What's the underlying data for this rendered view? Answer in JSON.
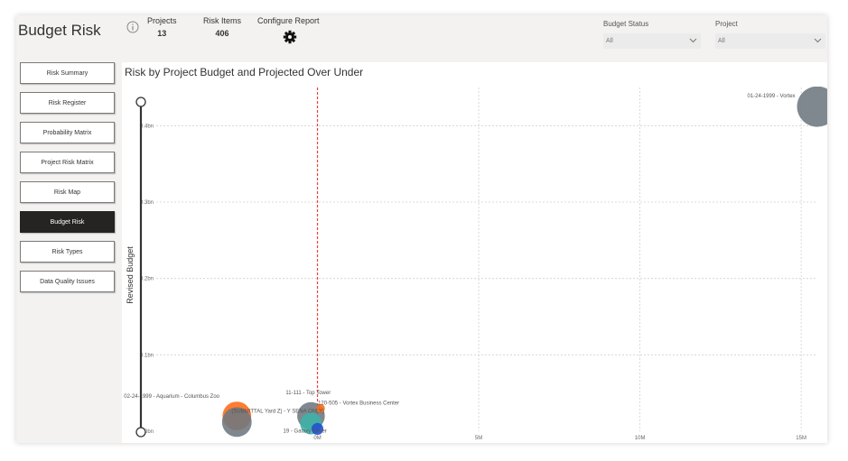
{
  "header": {
    "app_title": "Budget Risk",
    "kpis": [
      {
        "label": "Projects",
        "value": "13"
      },
      {
        "label": "Risk Items",
        "value": "406"
      }
    ],
    "configure_label": "Configure Report",
    "filters": [
      {
        "label": "Budget Status",
        "value": "All"
      },
      {
        "label": "Project",
        "value": "All"
      }
    ]
  },
  "sidebar": {
    "items": [
      {
        "label": "Risk Summary",
        "active": false
      },
      {
        "label": "Risk Register",
        "active": false
      },
      {
        "label": "Probability Matrix",
        "active": false
      },
      {
        "label": "Project Risk Matrix",
        "active": false
      },
      {
        "label": "Risk Map",
        "active": false
      },
      {
        "label": "Budget Risk",
        "active": true
      },
      {
        "label": "Risk Types",
        "active": false
      },
      {
        "label": "Data Quality Issues",
        "active": false
      }
    ]
  },
  "colors": {
    "accent_dark": "#252423",
    "bubble_gray": "#6e7780",
    "bubble_orange": "#ff6a13",
    "bubble_teal": "#3bb3a8",
    "bubble_blue": "#1f4fd1",
    "reference_line": "#e8443a"
  },
  "chart_data": {
    "type": "scatter",
    "title": "Risk by Project Budget and Projected Over Under",
    "xlabel": "",
    "ylabel": "Revised Budget",
    "x_ticks": [
      "0M",
      "5M",
      "10M",
      "15M"
    ],
    "y_ticks": [
      "0.0bn",
      "0.1bn",
      "0.2bn",
      "0.3bn",
      "0.4bn"
    ],
    "xlim": [
      -5000000,
      15500000
    ],
    "ylim": [
      0,
      450000000
    ],
    "reference_x": 0,
    "grid": true,
    "points": [
      {
        "label": "01-24-1999 - Vortex",
        "x": 15500000,
        "y": 425000000,
        "size": 1400,
        "color": "#6e7780"
      },
      {
        "label": "02-24-1999 - Aquarium - Columbus Zoo",
        "x": -2500000,
        "y": 20000000,
        "size": 700,
        "color": "#ff6a13"
      },
      {
        "label": "",
        "x": -2500000,
        "y": 12000000,
        "size": 750,
        "color": "#6e7780"
      },
      {
        "label": "11-111 - Top Tower",
        "x": -200000,
        "y": 20000000,
        "size": 650,
        "color": "#6e7780"
      },
      {
        "label": "(SUBMITTAL Yard Z) - Y SENA ONLY)",
        "x": -200000,
        "y": 10000000,
        "size": 400,
        "color": "#3bb3a8"
      },
      {
        "label": "120-505 - Vortex Business Center",
        "x": 100000,
        "y": 30000000,
        "size": 60,
        "color": "#ff6a13"
      },
      {
        "label": "19 - Galaxy Tower",
        "x": 0,
        "y": 3000000,
        "size": 120,
        "color": "#1f4fd1"
      }
    ]
  }
}
